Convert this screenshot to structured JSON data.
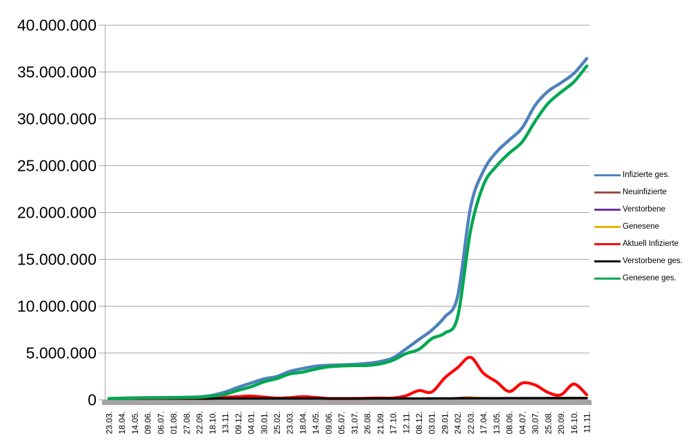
{
  "colors": {
    "background": "#FFFFFF",
    "grid": "#A6A6A6",
    "axis": "#A6A6A6",
    "axis_band": "#A5A5A5",
    "label_text": "#000000"
  },
  "chart_data": {
    "type": "line",
    "title": "",
    "xlabel": "",
    "ylabel": "",
    "grid": true,
    "legend_position": "right",
    "x_tick_label_rotation": -90,
    "y_axis": {
      "min": 0,
      "max": 40000000,
      "tick_interval": 5000000,
      "tick_labels": [
        "40.000.000",
        "35.000.000",
        "30.000.000",
        "25.000.000",
        "20.000.000",
        "15.000.000",
        "10.000.000",
        "5.000.000",
        "0"
      ]
    },
    "categories": [
      "23.03.",
      "18.04.",
      "14.05.",
      "09.06.",
      "06.07.",
      "01.08.",
      "27.08.",
      "22.09.",
      "18.10.",
      "13.11.",
      "09.12.",
      "04.01.",
      "30.01.",
      "25.02.",
      "23.03.",
      "18.04.",
      "14.05.",
      "09.06.",
      "05.07.",
      "31.07.",
      "26.08.",
      "21.09.",
      "17.10.",
      "12.11.",
      "08.12.",
      "03.01.",
      "29.01.",
      "24.02.",
      "22.03.",
      "17.04.",
      "13.05.",
      "08.06.",
      "04.07.",
      "30.07.",
      "25.08.",
      "20.09.",
      "16.10.",
      "11.11."
    ],
    "series": [
      {
        "name": "Infizierte ges.",
        "color": "#4F81BD",
        "line_width": 4.5,
        "values": [
          30000,
          140000,
          175000,
          190000,
          200000,
          210000,
          240000,
          280000,
          450000,
          800000,
          1300000,
          1750000,
          2200000,
          2450000,
          3000000,
          3300000,
          3550000,
          3650000,
          3700000,
          3750000,
          3850000,
          4050000,
          4450000,
          5400000,
          6400000,
          7400000,
          8800000,
          11000000,
          20500000,
          24400000,
          26400000,
          27700000,
          29000000,
          31400000,
          32900000,
          33800000,
          34800000,
          36400000
        ]
      },
      {
        "name": "Neuinfizierte",
        "color": "#9E4B44",
        "line_width": 2.3,
        "values": [
          5000,
          4000,
          1000,
          500,
          500,
          1000,
          1500,
          2000,
          7000,
          19000,
          25000,
          18000,
          12000,
          8000,
          16000,
          20000,
          8000,
          3000,
          1000,
          2000,
          9000,
          8000,
          7000,
          25000,
          50000,
          40000,
          90000,
          180000,
          250000,
          110000,
          50000,
          50000,
          90000,
          55000,
          30000,
          40000,
          100000,
          25000
        ]
      },
      {
        "name": "Verstorbene",
        "color": "#7030A0",
        "line_width": 2.3,
        "values": [
          200,
          700,
          900,
          500,
          300,
          200,
          200,
          300,
          400,
          800,
          1500,
          2000,
          1800,
          1200,
          800,
          900,
          800,
          400,
          200,
          150,
          150,
          200,
          300,
          500,
          800,
          900,
          800,
          700,
          600,
          500,
          400,
          300,
          350,
          400,
          350,
          300,
          400,
          350
        ]
      },
      {
        "name": "Genesene",
        "color": "#EFB200",
        "line_width": 2.5,
        "values": [
          3000,
          5000,
          3000,
          1000,
          500,
          1000,
          1000,
          1500,
          4000,
          12000,
          24000,
          22000,
          15000,
          10000,
          13000,
          22000,
          15000,
          5000,
          2000,
          2000,
          6000,
          8000,
          7000,
          15000,
          40000,
          45000,
          60000,
          120000,
          200000,
          180000,
          70000,
          50000,
          80000,
          70000,
          40000,
          35000,
          80000,
          55000
        ]
      },
      {
        "name": "Aktuell Infizierte",
        "color": "#FF0000",
        "line_width": 4.2,
        "values": [
          20000,
          50000,
          20000,
          12000,
          8000,
          9000,
          16000,
          30000,
          70000,
          230000,
          300000,
          360000,
          260000,
          150000,
          200000,
          300000,
          220000,
          70000,
          25000,
          40000,
          130000,
          160000,
          160000,
          400000,
          950000,
          800000,
          2300000,
          3400000,
          4500000,
          2800000,
          1900000,
          850000,
          1750000,
          1550000,
          750000,
          500000,
          1650000,
          500000
        ]
      },
      {
        "name": "Verstorbene ges.",
        "color": "#000000",
        "line_width": 3.4,
        "values": [
          1000,
          4000,
          8000,
          9000,
          9000,
          9000,
          9000,
          9500,
          10000,
          13000,
          22000,
          36000,
          57000,
          69000,
          76000,
          81000,
          86000,
          90000,
          91000,
          91500,
          92000,
          93000,
          95000,
          98000,
          104000,
          112000,
          118000,
          122000,
          127000,
          132000,
          136000,
          139000,
          141000,
          142000,
          144000,
          147000,
          151000,
          156000
        ]
      },
      {
        "name": "Genesene ges.",
        "color": "#00A850",
        "line_width": 4.5,
        "values": [
          10000,
          85000,
          150000,
          170000,
          180000,
          190000,
          215000,
          240000,
          370000,
          560000,
          980000,
          1350000,
          1880000,
          2230000,
          2720000,
          2920000,
          3240000,
          3490000,
          3580000,
          3620000,
          3630000,
          3800000,
          4200000,
          4900000,
          5350000,
          6490000,
          7080000,
          8800000,
          18000000,
          22900000,
          24900000,
          26300000,
          27500000,
          29700000,
          31600000,
          32800000,
          33900000,
          35600000
        ]
      }
    ]
  }
}
